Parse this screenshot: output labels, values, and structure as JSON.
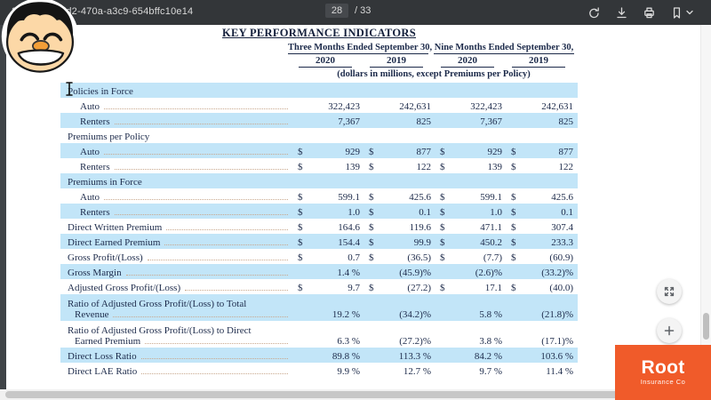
{
  "viewer": {
    "doc_id_prefix": "2",
    "doc_id_visible": "dd2-470a-a3c9-654bffc10e14",
    "page_current": "28",
    "page_total": "/ 33",
    "toolbar_icons": [
      "rotate-icon",
      "download-icon",
      "print-icon",
      "bookmark-icon",
      "caret-down-icon"
    ],
    "floating_icons": [
      "fit-to-width-icon",
      "zoom-in-icon"
    ]
  },
  "document": {
    "title": "KEY PERFORMANCE INDICATORS",
    "subtitle": "(dollars in millions, except Premiums per Policy)",
    "col_groups": [
      {
        "label": "Three Months Ended September 30,",
        "years": [
          "2020",
          "2019"
        ]
      },
      {
        "label": "Nine Months Ended September 30,",
        "years": [
          "2020",
          "2019"
        ]
      }
    ],
    "rows": [
      {
        "label": "Policies in Force",
        "section": true,
        "highlight": true
      },
      {
        "label": "Auto",
        "indent": true,
        "dollar": false,
        "values": [
          "322,423",
          "242,631",
          "322,423",
          "242,631"
        ],
        "highlight": false
      },
      {
        "label": "Renters",
        "indent": true,
        "dollar": false,
        "values": [
          "7,367",
          "825",
          "7,367",
          "825"
        ],
        "highlight": true
      },
      {
        "label": "Premiums per Policy",
        "section": true,
        "highlight": false
      },
      {
        "label": "Auto",
        "indent": true,
        "dollar": true,
        "values": [
          "929",
          "877",
          "929",
          "877"
        ],
        "highlight": true
      },
      {
        "label": "Renters",
        "indent": true,
        "dollar": true,
        "values": [
          "139",
          "122",
          "139",
          "122"
        ],
        "highlight": false
      },
      {
        "label": "Premiums in Force",
        "section": true,
        "highlight": true
      },
      {
        "label": "Auto",
        "indent": true,
        "dollar": true,
        "values": [
          "599.1",
          "425.6",
          "599.1",
          "425.6"
        ],
        "highlight": false
      },
      {
        "label": "Renters",
        "indent": true,
        "dollar": true,
        "values": [
          "1.0",
          "0.1",
          "1.0",
          "0.1"
        ],
        "highlight": true
      },
      {
        "label": "Direct Written Premium",
        "dollar": true,
        "values": [
          "164.6",
          "119.6",
          "471.1",
          "307.4"
        ],
        "highlight": false
      },
      {
        "label": "Direct Earned Premium",
        "dollar": true,
        "values": [
          "154.4",
          "99.9",
          "450.2",
          "233.3"
        ],
        "highlight": true
      },
      {
        "label": "Gross Profit/(Loss)",
        "dollar": true,
        "values": [
          "0.7",
          "(36.5)",
          "(7.7)",
          "(60.9)"
        ],
        "highlight": false
      },
      {
        "label": "Gross Margin",
        "dollar": false,
        "values": [
          "1.4 %",
          "(45.9)%",
          "(2.6)%",
          "(33.2)%"
        ],
        "highlight": true
      },
      {
        "label": "Adjusted Gross Profit/(Loss)",
        "dollar": true,
        "values": [
          "9.7",
          "(27.2)",
          "17.1",
          "(40.0)"
        ],
        "highlight": false
      },
      {
        "label": "Ratio of Adjusted Gross Profit/(Loss) to Total",
        "label2": "Revenue",
        "dollar": false,
        "values": [
          "19.2 %",
          "(34.2)%",
          "5.8 %",
          "(21.8)%"
        ],
        "highlight": true
      },
      {
        "label": "Ratio of Adjusted Gross Profit/(Loss) to Direct",
        "label2": "Earned Premium",
        "dollar": false,
        "values": [
          "6.3 %",
          "(27.2)%",
          "3.8 %",
          "(17.1)%"
        ],
        "highlight": false
      },
      {
        "label": "Direct Loss Ratio",
        "dollar": false,
        "values": [
          "89.8 %",
          "113.3 %",
          "84.2 %",
          "103.6 %"
        ],
        "highlight": true
      },
      {
        "label": "Direct LAE Ratio",
        "dollar": false,
        "values": [
          "9.9 %",
          "12.7 %",
          "9.7 %",
          "11.4 %"
        ],
        "highlight": false
      }
    ]
  },
  "logo": {
    "brand": "Root",
    "sub": "Insurance Co"
  },
  "colors": {
    "highlight": "#c2e5f8",
    "brand_orange": "#f05b2a",
    "topbar": "#333639",
    "text": "#1c2a4a"
  }
}
